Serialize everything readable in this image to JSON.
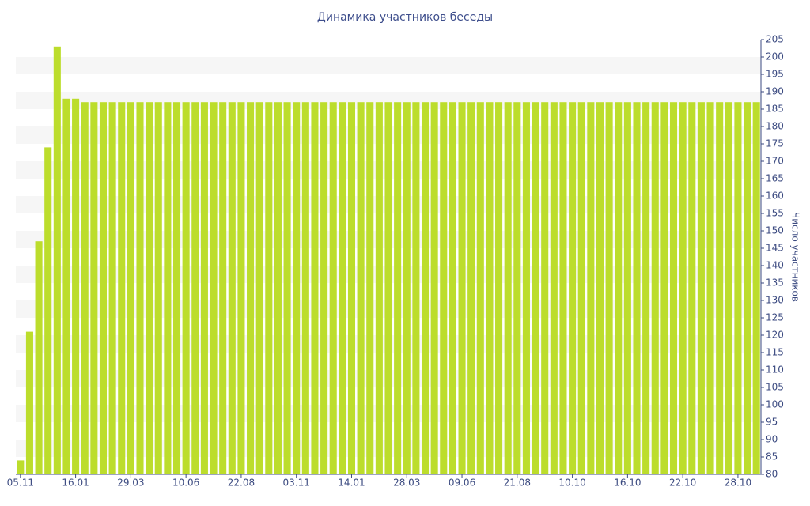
{
  "chart_data": {
    "type": "bar",
    "title": "Динамика участников беседы",
    "y_label": "Число участников",
    "categories": [
      "05.11",
      null,
      null,
      null,
      null,
      null,
      "16.01",
      null,
      null,
      null,
      null,
      null,
      "29.03",
      null,
      null,
      null,
      null,
      null,
      "10.06",
      null,
      null,
      null,
      null,
      null,
      "22.08",
      null,
      null,
      null,
      null,
      null,
      "03.11",
      null,
      null,
      null,
      null,
      null,
      "14.01",
      null,
      null,
      null,
      null,
      null,
      "28.03",
      null,
      null,
      null,
      null,
      null,
      "09.06",
      null,
      null,
      null,
      null,
      null,
      "21.08",
      null,
      null,
      null,
      null,
      null,
      "10.10",
      null,
      null,
      null,
      null,
      null,
      "16.10",
      null,
      null,
      null,
      null,
      null,
      "22.10",
      null,
      null,
      null,
      null,
      null,
      "28.10",
      null,
      null
    ],
    "values": [
      84,
      121,
      147,
      174,
      203,
      188,
      188,
      187,
      187,
      187,
      187,
      187,
      187,
      187,
      187,
      187,
      187,
      187,
      187,
      187,
      187,
      187,
      187,
      187,
      187,
      187,
      187,
      187,
      187,
      187,
      187,
      187,
      187,
      187,
      187,
      187,
      187,
      187,
      187,
      187,
      187,
      187,
      187,
      187,
      187,
      187,
      187,
      187,
      187,
      187,
      187,
      187,
      187,
      187,
      187,
      187,
      187,
      187,
      187,
      187,
      187,
      187,
      187,
      187,
      187,
      187,
      187,
      187,
      187,
      187,
      187,
      187,
      187,
      187,
      187,
      187,
      187,
      187,
      187,
      187,
      187
    ],
    "color": "#bcdd2c",
    "ylim": [
      80,
      205
    ],
    "yticks": [
      80,
      85,
      90,
      95,
      100,
      105,
      110,
      115,
      120,
      125,
      130,
      135,
      140,
      145,
      150,
      155,
      160,
      165,
      170,
      175,
      180,
      185,
      190,
      195,
      200,
      205
    ],
    "y_axis_side": "right",
    "grid": "bands"
  }
}
